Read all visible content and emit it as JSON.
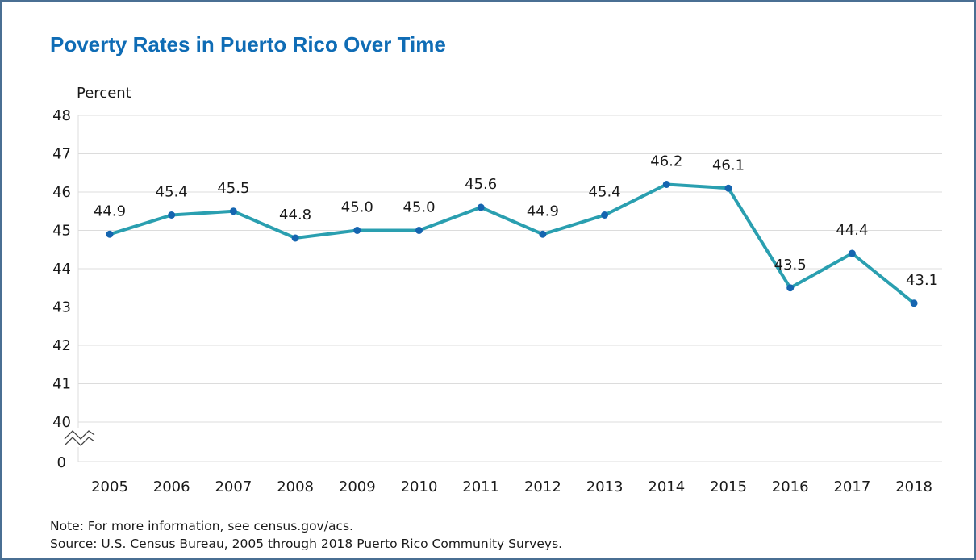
{
  "title": "Poverty Rates in Puerto Rico Over Time",
  "note": "Note: For more information, see census.gov/acs.",
  "source": "Source: U.S. Census Bureau, 2005 through 2018 Puerto Rico Community Surveys.",
  "colors": {
    "title": "#0f6cb5",
    "line": "#2a9fb0",
    "marker": "#1565b0",
    "grid": "#dcdcdc",
    "border": "#4a6f93"
  },
  "chart_data": {
    "type": "line",
    "title": "Poverty Rates in Puerto Rico Over Time",
    "ylabel": "Percent",
    "xlabel": "",
    "categories": [
      "2005",
      "2006",
      "2007",
      "2008",
      "2009",
      "2010",
      "2011",
      "2012",
      "2013",
      "2014",
      "2015",
      "2016",
      "2017",
      "2018"
    ],
    "values": [
      44.9,
      45.4,
      45.5,
      44.8,
      45.0,
      45.0,
      45.6,
      44.9,
      45.4,
      46.2,
      46.1,
      43.5,
      44.4,
      43.1
    ],
    "data_labels": [
      "44.9",
      "45.4",
      "45.5",
      "44.8",
      "45.0",
      "45.0",
      "45.6",
      "44.9",
      "45.4",
      "46.2",
      "46.1",
      "43.5",
      "44.4",
      "43.1"
    ],
    "yticks": [
      40,
      41,
      42,
      43,
      44,
      45,
      46,
      47,
      48
    ],
    "ylim": [
      40,
      48
    ],
    "axis_break": true,
    "axis_zero_label": "0",
    "grid": true,
    "legend": "none"
  }
}
